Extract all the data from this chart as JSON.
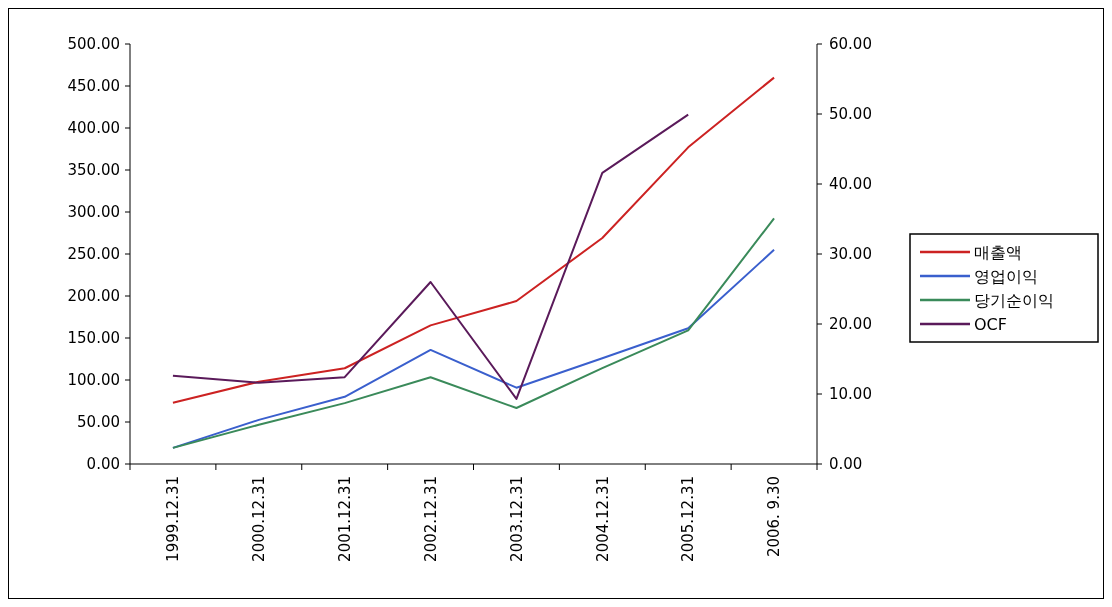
{
  "chart_data": {
    "type": "line",
    "categories": [
      "1999.12.31",
      "2000.12.31",
      "2001.12.31",
      "2002.12.31",
      "2003.12.31",
      "2004.12.31",
      "2005.12.31",
      "2006. 9.30"
    ],
    "series": [
      {
        "name": "매출액",
        "color": "#cc2222",
        "values": [
          73,
          98,
          114,
          165,
          194,
          269,
          377,
          460
        ]
      },
      {
        "name": "영업이익",
        "color": "#3a5fcd",
        "axis": "y2",
        "values": [
          2.3,
          6.3,
          9.6,
          16.3,
          10.9,
          15.1,
          19.4,
          30.6
        ]
      },
      {
        "name": "당기순이익",
        "color": "#3a8a5a",
        "axis": "y2",
        "values": [
          2.3,
          5.6,
          8.7,
          12.4,
          8.0,
          13.7,
          19.1,
          35.1
        ]
      },
      {
        "name": "OCF",
        "color": "#5a1a5a",
        "axis": "y2",
        "values": [
          12.6,
          11.6,
          12.4,
          26.0,
          9.3,
          41.6,
          49.9,
          null
        ]
      }
    ],
    "ylim": [
      0,
      500
    ],
    "yticks": [
      {
        "value": 0,
        "label": "0.00"
      },
      {
        "value": 50,
        "label": "50.00"
      },
      {
        "value": 100,
        "label": "100.00"
      },
      {
        "value": 150,
        "label": "150.00"
      },
      {
        "value": 200,
        "label": "200.00"
      },
      {
        "value": 250,
        "label": "250.00"
      },
      {
        "value": 300,
        "label": "300.00"
      },
      {
        "value": 350,
        "label": "350.00"
      },
      {
        "value": 400,
        "label": "400.00"
      },
      {
        "value": 450,
        "label": "450.00"
      },
      {
        "value": 500,
        "label": "500.00"
      }
    ],
    "y2lim": [
      0,
      60
    ],
    "y2ticks": [
      {
        "value": 0,
        "label": "0.00"
      },
      {
        "value": 10,
        "label": "10.00"
      },
      {
        "value": 20,
        "label": "20.00"
      },
      {
        "value": 30,
        "label": "30.00"
      },
      {
        "value": 40,
        "label": "40.00"
      },
      {
        "value": 50,
        "label": "50.00"
      },
      {
        "value": 60,
        "label": "60.00"
      }
    ],
    "grid": false,
    "legend": "right",
    "marker": "none",
    "line_style": "solid"
  }
}
